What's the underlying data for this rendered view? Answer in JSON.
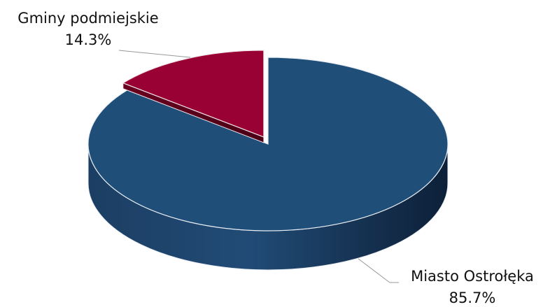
{
  "chart_data": {
    "type": "pie",
    "title": "",
    "slices": [
      {
        "label": "Miasto Ostrołęka",
        "value": 85.7,
        "value_label": "85.7%",
        "color": "#1F4E79",
        "exploded": false
      },
      {
        "label": "Gminy podmiejskie",
        "value": 14.3,
        "value_label": "14.3%",
        "color": "#990033",
        "exploded": true
      }
    ],
    "style": "3d"
  }
}
